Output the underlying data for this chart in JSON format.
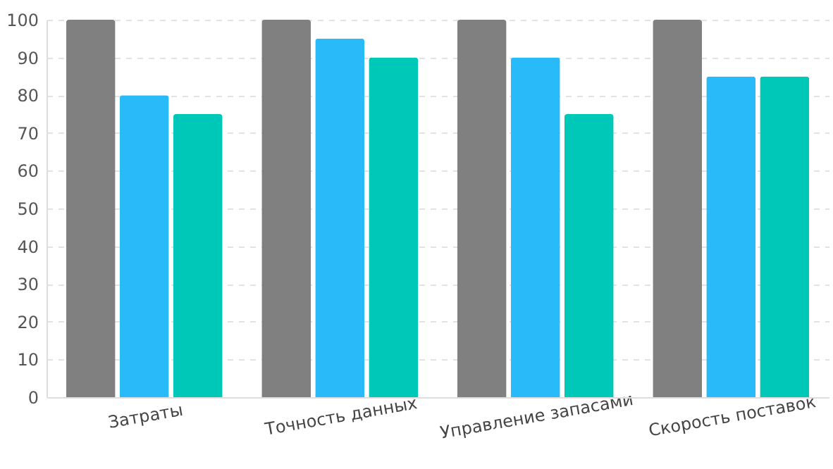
{
  "chart_data": {
    "type": "bar",
    "categories": [
      "Затраты",
      "Точность данных",
      "Управление запасами",
      "Скорость поставок"
    ],
    "series": [
      {
        "color": "#808080",
        "values": [
          100,
          100,
          100,
          100
        ]
      },
      {
        "color": "#29bbf9",
        "values": [
          80,
          95,
          90,
          85
        ]
      },
      {
        "color": "#00c8b8",
        "values": [
          75,
          90,
          75,
          85
        ]
      }
    ],
    "ylim": [
      0,
      100
    ],
    "yticks": [
      0,
      10,
      20,
      30,
      40,
      50,
      60,
      70,
      80,
      90,
      100
    ],
    "grid": "y",
    "legend": false
  }
}
